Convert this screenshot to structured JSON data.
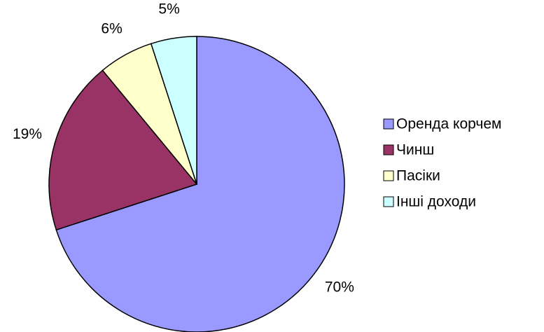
{
  "chart_data": {
    "type": "pie",
    "categories": [
      "Оренда корчем",
      "Чинш",
      "Пасіки",
      "Інші доходи"
    ],
    "values": [
      70,
      19,
      6,
      5
    ],
    "value_labels": [
      "70%",
      "19%",
      "6%",
      "5%"
    ],
    "colors": [
      "#9999ff",
      "#993366",
      "#ffffcc",
      "#ccffff"
    ],
    "legend": "right"
  }
}
